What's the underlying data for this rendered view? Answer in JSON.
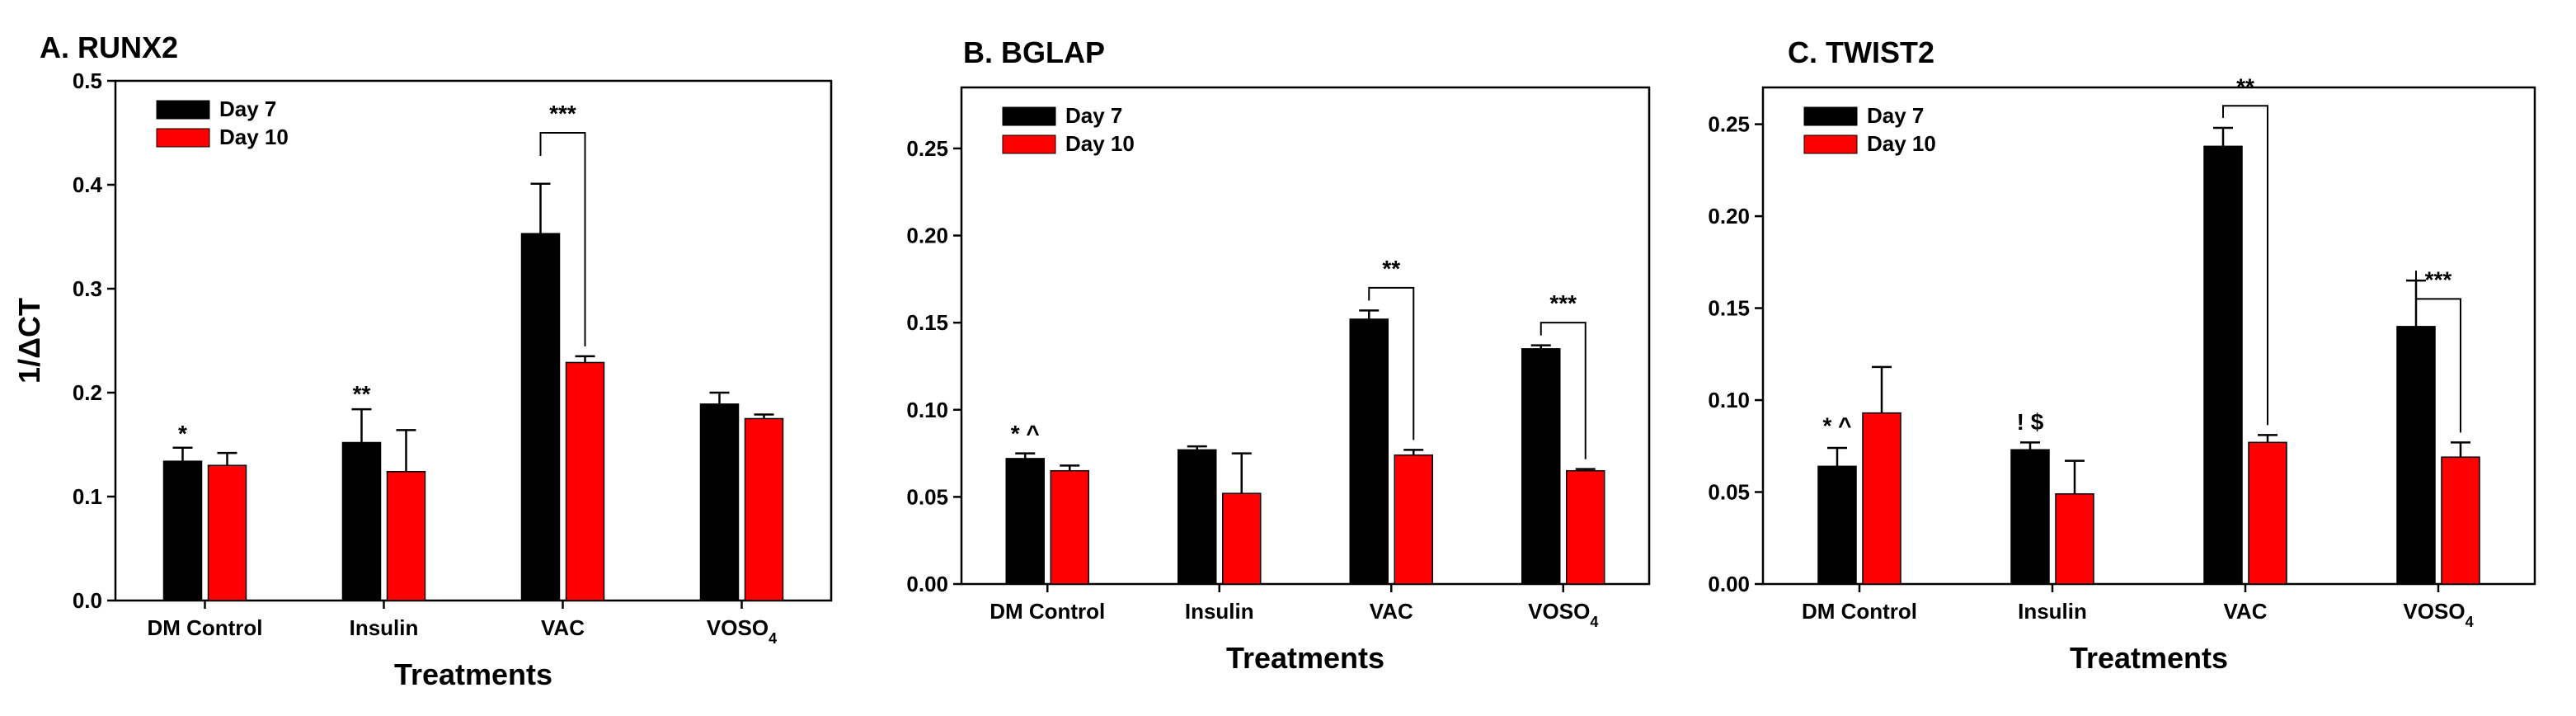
{
  "colors": {
    "day7": "#000000",
    "day10": "#ff0000",
    "axis": "#000000"
  },
  "chart_data": [
    {
      "type": "bar",
      "title": "A. RUNX2",
      "xlabel": "Treatments",
      "ylabel": "1/ΔCT",
      "ylim": [
        0,
        0.5
      ],
      "yticks": [
        "0.0",
        "0.1",
        "0.2",
        "0.3",
        "0.4",
        "0.5"
      ],
      "categories": [
        "DM Control",
        "Insulin",
        "VAC",
        "VOSO4"
      ],
      "series": [
        {
          "name": "Day 7",
          "values": [
            0.134,
            0.152,
            0.353,
            0.189
          ],
          "errors": [
            0.013,
            0.032,
            0.048,
            0.011
          ]
        },
        {
          "name": "Day 10",
          "values": [
            0.13,
            0.124,
            0.229,
            0.175
          ],
          "errors": [
            0.012,
            0.04,
            0.006,
            0.004
          ]
        }
      ],
      "annotations": [
        {
          "text": "*",
          "category": 0,
          "value": 0.15
        },
        {
          "text": "**",
          "category": 1,
          "value": 0.188
        }
      ],
      "brackets": [
        {
          "category": 2,
          "text": "***",
          "top": 0.45
        }
      ],
      "legend": {
        "position": "top-left"
      }
    },
    {
      "type": "bar",
      "title": "B. BGLAP",
      "xlabel": "Treatments",
      "ylabel": "",
      "ylim": [
        0,
        0.285
      ],
      "yticks": [
        "0.00",
        "0.05",
        "0.10",
        "0.15",
        "0.20",
        "0.25"
      ],
      "categories": [
        "DM Control",
        "Insulin",
        "VAC",
        "VOSO4"
      ],
      "series": [
        {
          "name": "Day 7",
          "values": [
            0.072,
            0.077,
            0.152,
            0.135
          ],
          "errors": [
            0.003,
            0.002,
            0.005,
            0.002
          ]
        },
        {
          "name": "Day 10",
          "values": [
            0.065,
            0.052,
            0.074,
            0.065
          ],
          "errors": [
            0.003,
            0.023,
            0.003,
            0.001
          ]
        }
      ],
      "annotations": [
        {
          "text": "* ^",
          "category": 0,
          "value": 0.08
        }
      ],
      "brackets": [
        {
          "category": 2,
          "text": "**",
          "top": 0.17
        },
        {
          "category": 3,
          "text": "***",
          "top": 0.15
        }
      ],
      "legend": {
        "position": "top-left"
      }
    },
    {
      "type": "bar",
      "title": "C. TWIST2",
      "xlabel": "Treatments",
      "ylabel": "",
      "ylim": [
        0,
        0.27
      ],
      "yticks": [
        "0.00",
        "0.05",
        "0.10",
        "0.15",
        "0.20",
        "0.25"
      ],
      "categories": [
        "DM Control",
        "Insulin",
        "VAC",
        "VOSO4"
      ],
      "series": [
        {
          "name": "Day 7",
          "values": [
            0.064,
            0.073,
            0.238,
            0.14
          ],
          "errors": [
            0.01,
            0.004,
            0.01,
            0.025
          ]
        },
        {
          "name": "Day 10",
          "values": [
            0.093,
            0.049,
            0.077,
            0.069
          ],
          "errors": [
            0.025,
            0.018,
            0.004,
            0.008
          ]
        }
      ],
      "annotations": [
        {
          "text": "* ^",
          "category": 0,
          "value": 0.08
        },
        {
          "text": "! $",
          "category": 1,
          "value": 0.082
        }
      ],
      "brackets": [
        {
          "category": 2,
          "text": "**",
          "top": 0.26
        },
        {
          "category": 3,
          "text": "***",
          "top": 0.155
        }
      ],
      "legend": {
        "position": "top-left"
      }
    }
  ]
}
